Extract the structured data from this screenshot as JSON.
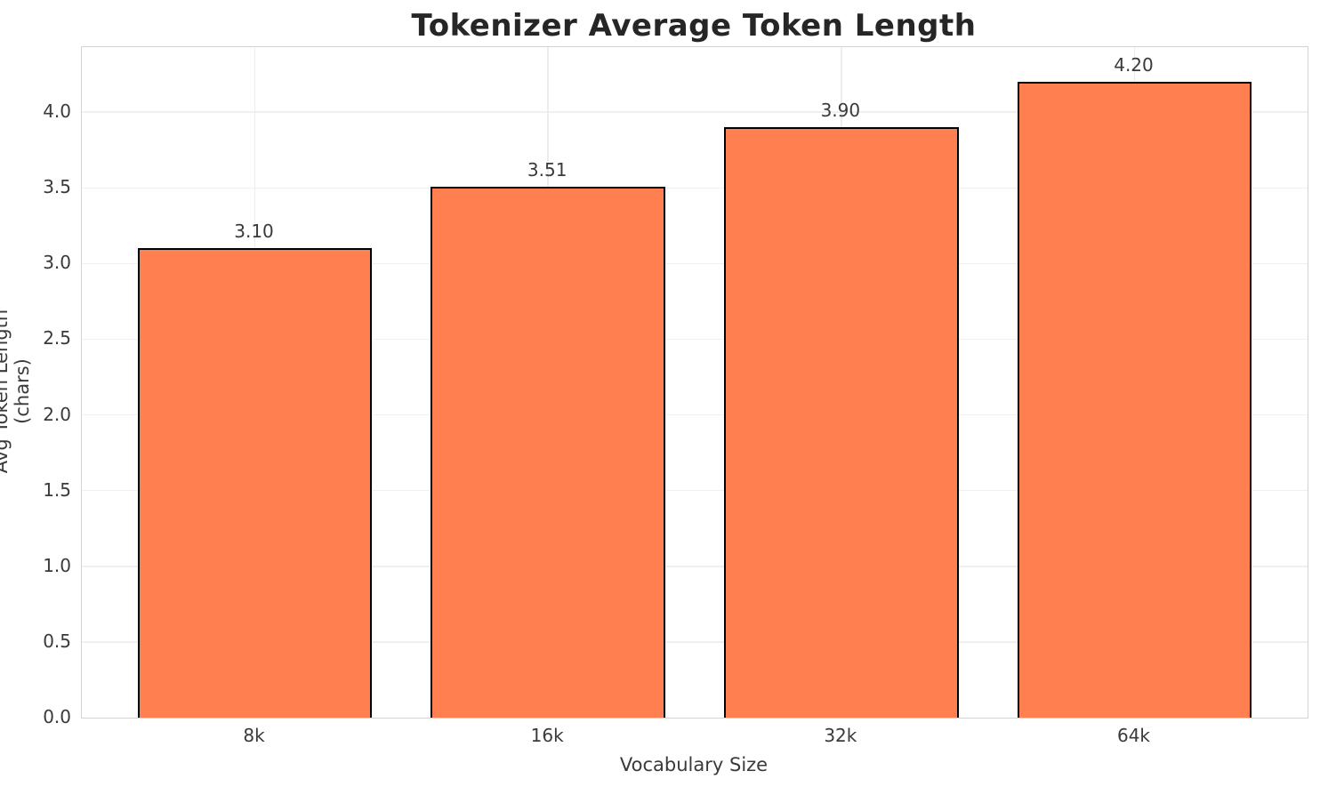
{
  "chart_data": {
    "type": "bar",
    "title": "Tokenizer Average Token Length",
    "xlabel": "Vocabulary Size",
    "ylabel": "Avg Token Length (chars)",
    "categories": [
      "8k",
      "16k",
      "32k",
      "64k"
    ],
    "values": [
      3.1,
      3.51,
      3.9,
      4.2
    ],
    "value_labels": [
      "3.10",
      "3.51",
      "3.90",
      "4.20"
    ],
    "ytick_values": [
      0.0,
      0.5,
      1.0,
      1.5,
      2.0,
      2.5,
      3.0,
      3.5,
      4.0
    ],
    "ytick_labels": [
      "0.0",
      "0.5",
      "1.0",
      "1.5",
      "2.0",
      "2.5",
      "3.0",
      "3.5",
      "4.0"
    ],
    "ylim": [
      0,
      4.43
    ],
    "xlim": [
      -0.59,
      3.59
    ],
    "bar_width_units": 0.8,
    "grid": true,
    "legend": "none",
    "bar_color": "#FF7F50",
    "bar_edge_color": "#000000",
    "grid_color": "#f0f0f0",
    "spine_color": "#d4d4d4",
    "text_color": "#3a3a3a",
    "title_color": "#262626",
    "background_color": "#ffffff"
  }
}
